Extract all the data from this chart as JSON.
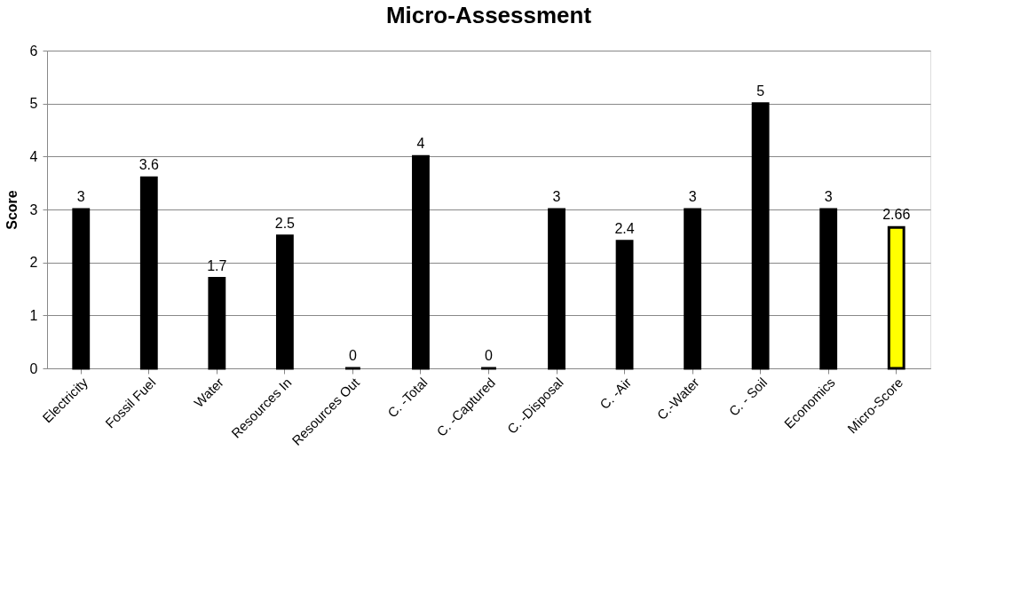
{
  "chart_data": {
    "type": "bar",
    "title": "Micro-Assessment",
    "ylabel": "Score",
    "categories": [
      "Electricity",
      "Fossil Fuel",
      "Water",
      "Resources In",
      "Resources Out",
      "C. -Total",
      "C. -Captured",
      "C. -Disposal",
      "C. -Air",
      "C.-Water",
      "C. - Soil",
      "Economics",
      "Micro-Score"
    ],
    "values": [
      3,
      3.6,
      1.7,
      2.5,
      0,
      4,
      0,
      3,
      2.4,
      3,
      5,
      3,
      2.66
    ],
    "colors": [
      "#000000",
      "#000000",
      "#000000",
      "#000000",
      "#000000",
      "#000000",
      "#000000",
      "#000000",
      "#000000",
      "#000000",
      "#000000",
      "#000000",
      "#ffff00"
    ],
    "ylim": [
      0,
      6
    ],
    "yticks": [
      0,
      1,
      2,
      3,
      4,
      5,
      6
    ],
    "grid": "y",
    "data_labels": true
  }
}
